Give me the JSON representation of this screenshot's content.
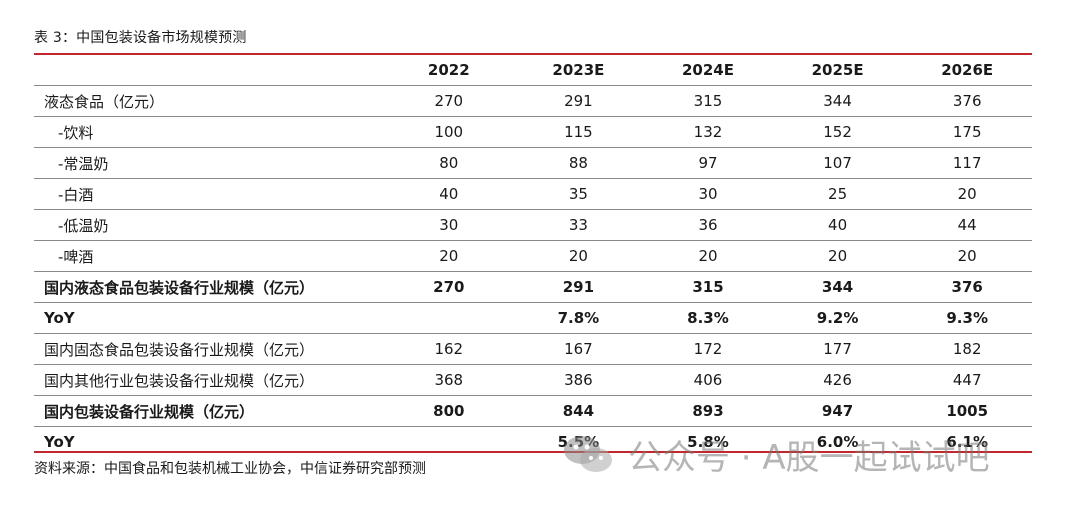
{
  "caption": "表 3：中国包装设备市场规模预测",
  "table": {
    "headers": [
      "",
      "2022",
      "2023E",
      "2024E",
      "2025E",
      "2026E"
    ],
    "rows": [
      {
        "label": "液态食品（亿元）",
        "values": [
          "270",
          "291",
          "315",
          "344",
          "376"
        ],
        "bold": false,
        "indent": false
      },
      {
        "label": "-饮料",
        "values": [
          "100",
          "115",
          "132",
          "152",
          "175"
        ],
        "bold": false,
        "indent": true
      },
      {
        "label": "-常温奶",
        "values": [
          "80",
          "88",
          "97",
          "107",
          "117"
        ],
        "bold": false,
        "indent": true
      },
      {
        "label": "-白酒",
        "values": [
          "40",
          "35",
          "30",
          "25",
          "20"
        ],
        "bold": false,
        "indent": true
      },
      {
        "label": "-低温奶",
        "values": [
          "30",
          "33",
          "36",
          "40",
          "44"
        ],
        "bold": false,
        "indent": true
      },
      {
        "label": "-啤酒",
        "values": [
          "20",
          "20",
          "20",
          "20",
          "20"
        ],
        "bold": false,
        "indent": true
      },
      {
        "label": "国内液态食品包装设备行业规模（亿元）",
        "values": [
          "270",
          "291",
          "315",
          "344",
          "376"
        ],
        "bold": true,
        "indent": false
      },
      {
        "label": "YoY",
        "values": [
          "",
          "7.8%",
          "8.3%",
          "9.2%",
          "9.3%"
        ],
        "bold": true,
        "indent": false
      },
      {
        "label": "国内固态食品包装设备行业规模（亿元）",
        "values": [
          "162",
          "167",
          "172",
          "177",
          "182"
        ],
        "bold": false,
        "indent": false
      },
      {
        "label": "国内其他行业包装设备行业规模（亿元）",
        "values": [
          "368",
          "386",
          "406",
          "426",
          "447"
        ],
        "bold": false,
        "indent": false
      },
      {
        "label": "国内包装设备行业规模（亿元）",
        "values": [
          "800",
          "844",
          "893",
          "947",
          "1005"
        ],
        "bold": true,
        "indent": false
      },
      {
        "label": "YoY",
        "values": [
          "",
          "5.5%",
          "5.8%",
          "6.0%",
          "6.1%"
        ],
        "bold": true,
        "indent": false
      }
    ]
  },
  "source": "资料来源：中国食品和包装机械工业协会，中信证券研究部预测",
  "watermark": "公众号 · A股一起试试吧",
  "colors": {
    "accent_line": "#c0282d",
    "rule": "#8a8a8a"
  }
}
